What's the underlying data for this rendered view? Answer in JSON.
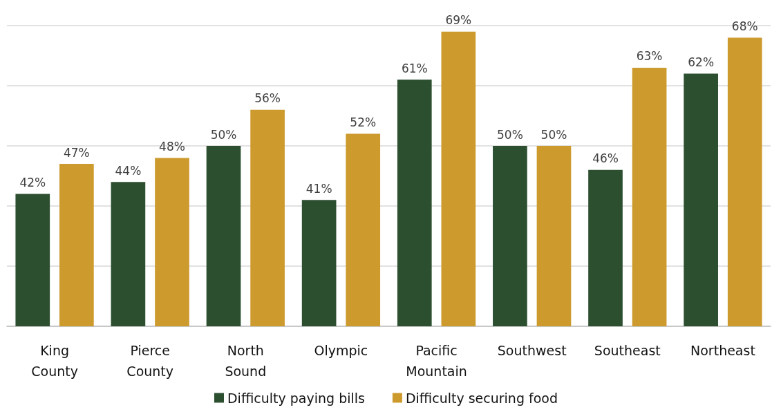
{
  "chart_data": {
    "type": "bar",
    "categories": [
      "King County",
      "Pierce County",
      "North Sound",
      "Olympic",
      "Pacific Mountain",
      "Southwest",
      "Southeast",
      "Northeast"
    ],
    "series": [
      {
        "name": "Difficulty paying bills",
        "color": "#2c4f30",
        "values": [
          42,
          44,
          50,
          41,
          61,
          50,
          46,
          62
        ],
        "value_labels": [
          "42%",
          "44%",
          "50%",
          "41%",
          "61%",
          "50%",
          "46%",
          "62%"
        ]
      },
      {
        "name": "Difficulty securing food",
        "color": "#cd9a2e",
        "values": [
          47,
          48,
          56,
          52,
          69,
          50,
          63,
          68
        ],
        "value_labels": [
          "47%",
          "48%",
          "56%",
          "52%",
          "69%",
          "50%",
          "63%",
          "68%"
        ]
      }
    ],
    "ylim": [
      20,
      70
    ],
    "yticks": [
      {
        "value": 20,
        "label": null
      },
      {
        "value": 30,
        "label": null
      },
      {
        "value": 40,
        "label": null
      },
      {
        "value": 50,
        "label": null
      },
      {
        "value": 60,
        "label": null
      },
      {
        "value": 70,
        "label": null
      }
    ],
    "tick_labels": "x",
    "grid": "y",
    "legend": "bottom"
  }
}
